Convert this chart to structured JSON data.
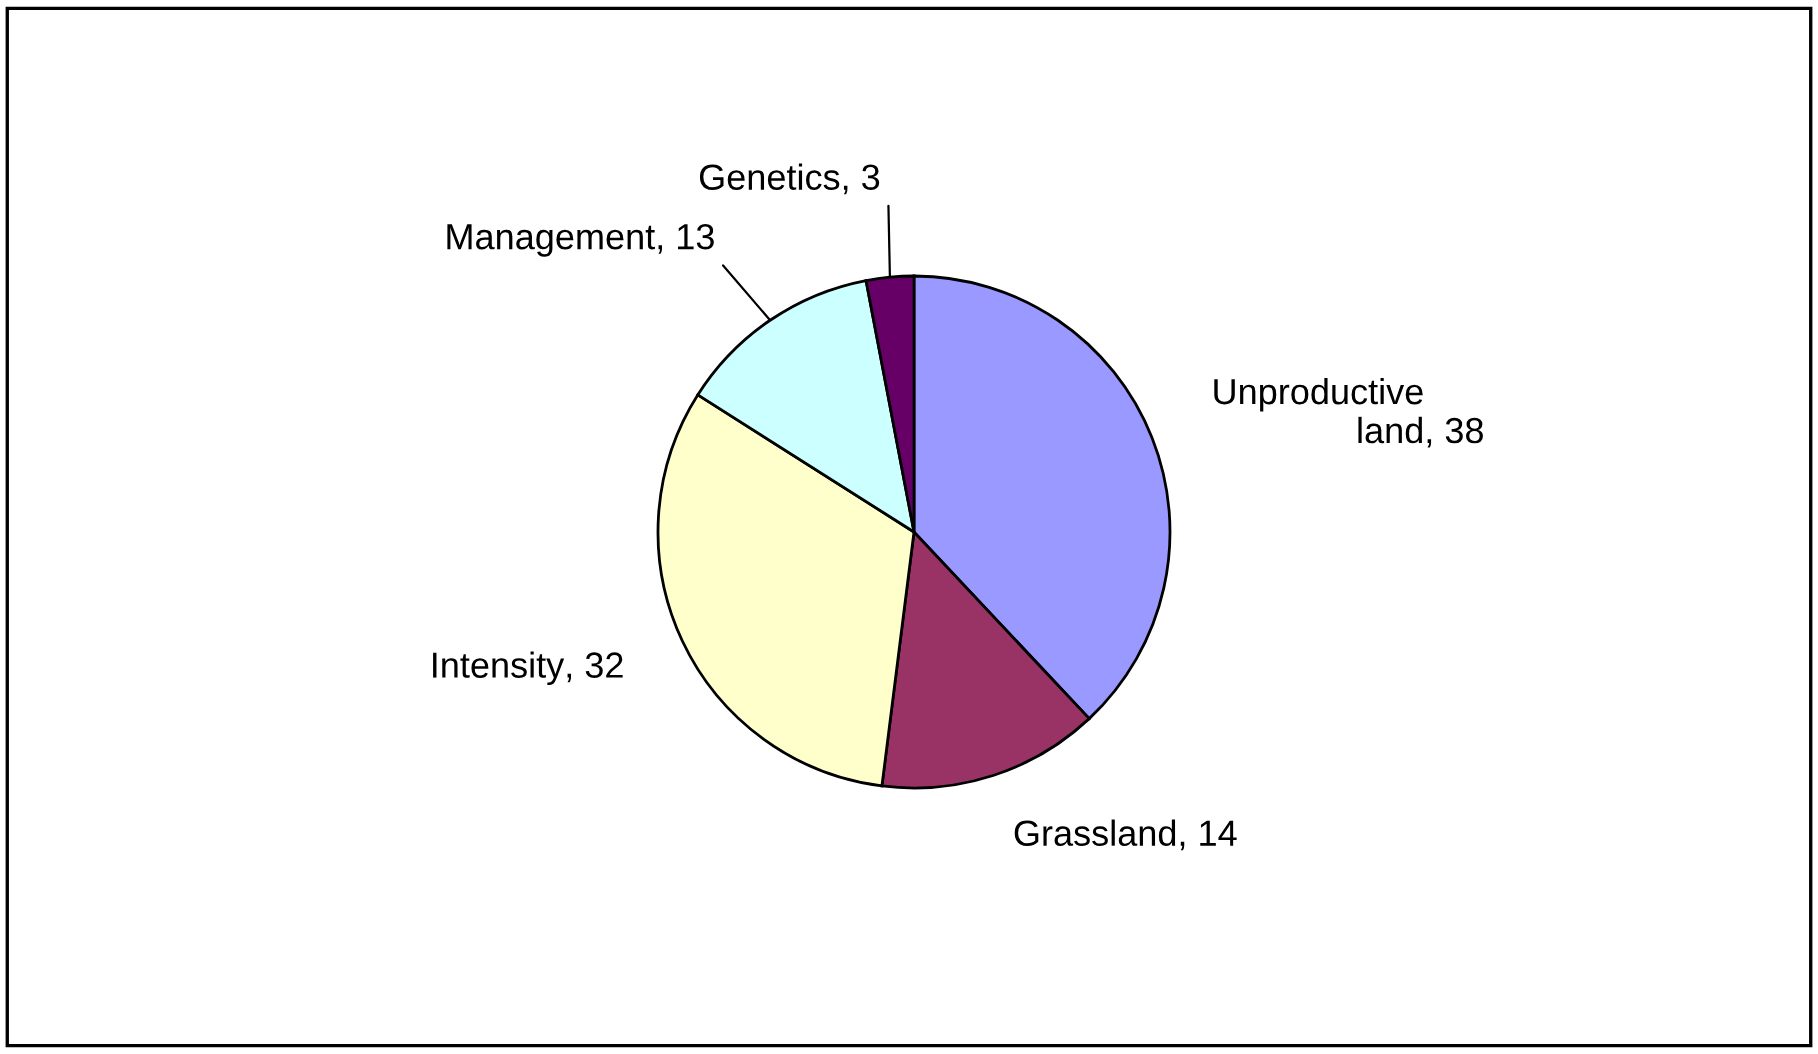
{
  "chart_data": {
    "type": "pie",
    "categories": [
      "Unproductive land",
      "Grassland",
      "Intensity",
      "Management",
      "Genetics"
    ],
    "values": [
      38,
      14,
      32,
      13,
      3
    ],
    "colors": [
      "#9999ff",
      "#993366",
      "#ffffcc",
      "#ccffff",
      "#660066"
    ],
    "value_labels": [
      ", 38",
      ", 14",
      ", 32",
      ", 13",
      ", 3"
    ],
    "legend": false
  }
}
